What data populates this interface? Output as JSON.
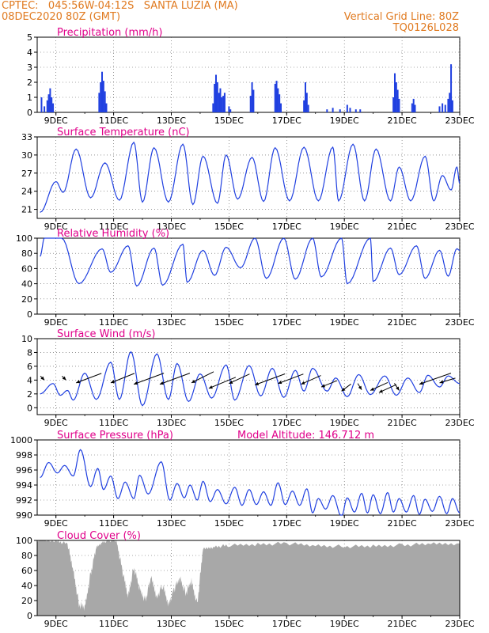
{
  "header": {
    "line1_left": "CPTEC:   045:56W-04:12S   SANTA LUZIA (MA)",
    "line2_left": "08DEC2020 80Z (GMT)",
    "line1_right": "Vertical Grid Line: 80Z",
    "line2_right": "TQ0126L028",
    "colors": {
      "header": "#e07a20",
      "title": "#e0008a",
      "line": "#2040e0",
      "bar": "#2040e0",
      "cloud": "#a8a8a8"
    }
  },
  "x_ticks": [
    {
      "label": "9DEC",
      "day": 9
    },
    {
      "label": "11DEC",
      "day": 11
    },
    {
      "label": "13DEC",
      "day": 13
    },
    {
      "label": "15DEC",
      "day": 15
    },
    {
      "label": "17DEC",
      "day": 17
    },
    {
      "label": "19DEC",
      "day": 19
    },
    {
      "label": "21DEC",
      "day": 21
    },
    {
      "label": "23DEC",
      "day": 23
    }
  ],
  "chart_data": [
    {
      "id": "precip",
      "type": "bar",
      "title": "Precipitation (mm/h)",
      "xlim": [
        8.35,
        23.0
      ],
      "ylim": [
        0,
        5
      ],
      "yticks": [
        "0",
        "1",
        "2",
        "3",
        "4",
        "5"
      ],
      "grid": true,
      "x": [
        8.5,
        8.6,
        8.7,
        8.75,
        8.8,
        8.85,
        8.9,
        10.5,
        10.55,
        10.6,
        10.65,
        10.7,
        10.75,
        14.45,
        14.5,
        14.55,
        14.6,
        14.65,
        14.7,
        14.75,
        14.8,
        14.85,
        15.0,
        15.05,
        15.75,
        15.8,
        15.85,
        16.6,
        16.65,
        16.7,
        16.75,
        16.8,
        17.6,
        17.65,
        17.7,
        17.75,
        18.4,
        18.6,
        18.85,
        19.1,
        19.2,
        19.4,
        19.55,
        20.7,
        20.75,
        20.8,
        20.85,
        20.9,
        21.35,
        21.4,
        21.45,
        22.3,
        22.4,
        22.5,
        22.6,
        22.65,
        22.7,
        22.75
      ],
      "values": [
        1.0,
        0.4,
        0.8,
        1.2,
        1.6,
        1.0,
        0.6,
        1.3,
        2.0,
        2.7,
        2.1,
        1.4,
        0.6,
        0.6,
        1.9,
        2.5,
        2.0,
        1.3,
        1.6,
        1.0,
        1.1,
        1.3,
        0.4,
        0.2,
        1.1,
        2.0,
        1.5,
        1.9,
        2.1,
        1.6,
        1.2,
        0.6,
        0.8,
        2.0,
        1.3,
        0.5,
        0.2,
        0.3,
        0.2,
        0.5,
        0.3,
        0.2,
        0.2,
        1.0,
        2.6,
        2.0,
        1.5,
        0.9,
        0.6,
        0.9,
        0.5,
        0.4,
        0.6,
        0.5,
        0.9,
        1.3,
        3.2,
        0.8
      ]
    },
    {
      "id": "temp",
      "type": "line",
      "title": "Surface Temperature (nC)",
      "xlim": [
        8.35,
        23.0
      ],
      "ylim": [
        19.5,
        33
      ],
      "yticks": [
        "21",
        "24",
        "27",
        "30",
        "33"
      ],
      "ytick_values": [
        21,
        24,
        27,
        30,
        33
      ],
      "grid": true,
      "peaks": [
        [
          9.0,
          25.6
        ],
        [
          9.7,
          31.0
        ],
        [
          10.7,
          28.7
        ],
        [
          11.7,
          32.1
        ],
        [
          12.4,
          31.2
        ],
        [
          13.4,
          31.8
        ],
        [
          14.1,
          29.8
        ],
        [
          14.9,
          30.0
        ],
        [
          15.8,
          29.6
        ],
        [
          16.6,
          31.2
        ],
        [
          17.6,
          31.3
        ],
        [
          18.6,
          31.3
        ],
        [
          19.3,
          31.8
        ],
        [
          20.1,
          31.0
        ],
        [
          20.9,
          28.0
        ],
        [
          21.8,
          29.8
        ],
        [
          22.4,
          26.6
        ],
        [
          22.9,
          28.0
        ]
      ],
      "troughs": [
        [
          8.45,
          20.5
        ],
        [
          9.25,
          23.8
        ],
        [
          10.2,
          22.9
        ],
        [
          11.2,
          22.5
        ],
        [
          12.0,
          22.2
        ],
        [
          12.9,
          22.2
        ],
        [
          13.75,
          21.8
        ],
        [
          14.6,
          22.0
        ],
        [
          15.3,
          22.7
        ],
        [
          16.2,
          22.3
        ],
        [
          17.1,
          22.4
        ],
        [
          18.1,
          22.4
        ],
        [
          18.8,
          22.4
        ],
        [
          19.7,
          22.4
        ],
        [
          20.6,
          22.4
        ],
        [
          21.3,
          22.4
        ],
        [
          22.1,
          22.4
        ],
        [
          22.7,
          24.2
        ]
      ],
      "end": [
        23.0,
        25.3
      ]
    },
    {
      "id": "rh",
      "type": "line",
      "title": "Relative Humidity (%)",
      "xlim": [
        8.35,
        23.0
      ],
      "ylim": [
        0,
        100
      ],
      "yticks": [
        "0",
        "20",
        "40",
        "60",
        "80",
        "100"
      ],
      "ytick_values": [
        0,
        20,
        40,
        60,
        80,
        100
      ],
      "grid": true,
      "peaks": [
        [
          8.6,
          100
        ],
        [
          9.2,
          100
        ],
        [
          10.6,
          86
        ],
        [
          11.5,
          90
        ],
        [
          12.4,
          87
        ],
        [
          13.4,
          92
        ],
        [
          14.1,
          84
        ],
        [
          14.9,
          88
        ],
        [
          15.9,
          100
        ],
        [
          16.9,
          100
        ],
        [
          17.9,
          100
        ],
        [
          18.9,
          100
        ],
        [
          19.9,
          100
        ],
        [
          20.6,
          87
        ],
        [
          21.5,
          90
        ],
        [
          22.3,
          84
        ],
        [
          22.9,
          86
        ]
      ],
      "troughs": [
        [
          8.45,
          76
        ],
        [
          8.9,
          100
        ],
        [
          9.8,
          40
        ],
        [
          10.9,
          55
        ],
        [
          11.8,
          37
        ],
        [
          12.7,
          38
        ],
        [
          13.55,
          42
        ],
        [
          14.5,
          51
        ],
        [
          15.4,
          61
        ],
        [
          16.3,
          47
        ],
        [
          17.3,
          46
        ],
        [
          18.2,
          49
        ],
        [
          19.1,
          40
        ],
        [
          20.0,
          43
        ],
        [
          20.9,
          52
        ],
        [
          21.8,
          47
        ],
        [
          22.6,
          50
        ]
      ],
      "end": [
        23.0,
        84
      ]
    },
    {
      "id": "wind",
      "type": "line",
      "title": "Surface Wind (m/s)",
      "xlim": [
        8.35,
        23.0
      ],
      "ylim": [
        -1,
        10
      ],
      "yticks": [
        "0",
        "2",
        "4",
        "6",
        "8",
        "10"
      ],
      "ytick_values": [
        0,
        2,
        4,
        6,
        8,
        10
      ],
      "grid": true,
      "peaks": [
        [
          8.9,
          3.5
        ],
        [
          9.4,
          2.5
        ],
        [
          10.0,
          5.0
        ],
        [
          10.9,
          6.6
        ],
        [
          11.6,
          8.1
        ],
        [
          12.5,
          7.8
        ],
        [
          13.2,
          6.4
        ],
        [
          14.0,
          4.9
        ],
        [
          14.9,
          6.2
        ],
        [
          15.7,
          6.1
        ],
        [
          16.5,
          5.7
        ],
        [
          17.3,
          5.4
        ],
        [
          17.9,
          5.7
        ],
        [
          18.7,
          4.3
        ],
        [
          19.5,
          4.8
        ],
        [
          20.4,
          4.6
        ],
        [
          21.2,
          4.3
        ],
        [
          21.9,
          4.7
        ],
        [
          22.6,
          4.6
        ]
      ],
      "troughs": [
        [
          8.45,
          2.0
        ],
        [
          9.15,
          1.8
        ],
        [
          9.6,
          1.1
        ],
        [
          10.4,
          1.2
        ],
        [
          11.2,
          1.2
        ],
        [
          12.0,
          0.3
        ],
        [
          12.9,
          1.2
        ],
        [
          13.6,
          0.9
        ],
        [
          14.4,
          1.4
        ],
        [
          15.2,
          1.1
        ],
        [
          16.1,
          1.7
        ],
        [
          16.9,
          1.5
        ],
        [
          17.6,
          2.4
        ],
        [
          18.4,
          2.4
        ],
        [
          19.1,
          1.6
        ],
        [
          19.9,
          1.9
        ],
        [
          20.8,
          1.8
        ],
        [
          21.6,
          2.2
        ],
        [
          22.3,
          3.0
        ]
      ],
      "end": [
        23.0,
        3.5
      ],
      "arrows": [
        [
          8.6,
          4,
          -5,
          -5
        ],
        [
          9.35,
          4,
          -5,
          -5
        ],
        [
          9.7,
          3.6,
          32,
          -12
        ],
        [
          10.9,
          3.6,
          30,
          -12
        ],
        [
          11.7,
          3.4,
          38,
          -14
        ],
        [
          12.6,
          3.4,
          38,
          -14
        ],
        [
          13.7,
          3.6,
          28,
          -14
        ],
        [
          14.3,
          2.8,
          34,
          -14
        ],
        [
          15.0,
          3.5,
          26,
          -12
        ],
        [
          15.9,
          3.3,
          38,
          -14
        ],
        [
          16.7,
          3.5,
          32,
          -12
        ],
        [
          17.5,
          3.4,
          25,
          -11
        ],
        [
          18.2,
          3.0,
          20,
          -8
        ],
        [
          18.9,
          2.4,
          12,
          -9
        ],
        [
          19.6,
          2.6,
          -5,
          -8
        ],
        [
          19.9,
          2.5,
          22,
          -10
        ],
        [
          20.2,
          2.2,
          22,
          -10
        ],
        [
          20.9,
          2.5,
          -6,
          -9
        ],
        [
          21.6,
          3.4,
          40,
          -14
        ],
        [
          22.3,
          3.6,
          20,
          -6
        ]
      ]
    },
    {
      "id": "pres",
      "type": "line",
      "title": "Surface Pressure (hPa)",
      "annotation": "Model Altitude: 146.712  m",
      "xlim": [
        8.35,
        23.0
      ],
      "ylim": [
        990,
        1000
      ],
      "yticks": [
        "990",
        "992",
        "994",
        "996",
        "998",
        "1000"
      ],
      "ytick_values": [
        990,
        992,
        994,
        996,
        998,
        1000
      ],
      "grid": true,
      "peaks": [
        [
          8.75,
          997.0
        ],
        [
          9.3,
          996.6
        ],
        [
          9.85,
          998.7
        ],
        [
          10.45,
          996.2
        ],
        [
          10.9,
          995.2
        ],
        [
          11.4,
          994.4
        ],
        [
          11.9,
          995.3
        ],
        [
          12.65,
          997.1
        ],
        [
          13.2,
          994.2
        ],
        [
          13.65,
          994.0
        ],
        [
          14.1,
          994.5
        ],
        [
          14.6,
          993.4
        ],
        [
          15.2,
          993.7
        ],
        [
          15.7,
          993.4
        ],
        [
          16.2,
          993.1
        ],
        [
          16.7,
          994.3
        ],
        [
          17.2,
          993.2
        ],
        [
          17.7,
          993.5
        ],
        [
          18.1,
          992.2
        ],
        [
          18.6,
          992.6
        ],
        [
          19.1,
          992.3
        ],
        [
          19.6,
          992.9
        ],
        [
          20.0,
          992.7
        ],
        [
          20.5,
          993.0
        ],
        [
          20.9,
          992.2
        ],
        [
          21.4,
          992.6
        ],
        [
          21.8,
          992.1
        ],
        [
          22.3,
          992.5
        ],
        [
          22.75,
          992.2
        ]
      ],
      "troughs": [
        [
          8.45,
          995.0
        ],
        [
          9.05,
          995.6
        ],
        [
          9.6,
          995.2
        ],
        [
          10.2,
          993.8
        ],
        [
          10.65,
          993.4
        ],
        [
          11.15,
          992.2
        ],
        [
          11.7,
          992.2
        ],
        [
          12.2,
          992.8
        ],
        [
          12.95,
          992.0
        ],
        [
          13.45,
          992.3
        ],
        [
          13.9,
          992.0
        ],
        [
          14.35,
          991.8
        ],
        [
          14.9,
          991.5
        ],
        [
          15.45,
          991.3
        ],
        [
          15.95,
          991.4
        ],
        [
          16.45,
          991.3
        ],
        [
          16.95,
          991.4
        ],
        [
          17.45,
          991.3
        ],
        [
          17.9,
          990.3
        ],
        [
          18.35,
          990.8
        ],
        [
          18.9,
          989.8
        ],
        [
          19.35,
          990.4
        ],
        [
          19.8,
          990.3
        ],
        [
          20.25,
          990.2
        ],
        [
          20.7,
          990.4
        ],
        [
          21.15,
          990.4
        ],
        [
          21.6,
          990.1
        ],
        [
          22.05,
          990.5
        ],
        [
          22.55,
          990.2
        ]
      ],
      "end": [
        23.0,
        990.3
      ]
    },
    {
      "id": "cloud",
      "type": "area",
      "title": "Cloud Cover (%)",
      "xlim": [
        8.35,
        23.0
      ],
      "ylim": [
        0,
        100
      ],
      "yticks": [
        "0",
        "20",
        "40",
        "60",
        "80",
        "100"
      ],
      "ytick_values": [
        0,
        20,
        40,
        60,
        80,
        100
      ],
      "grid": true,
      "x": [
        8.35,
        9.0,
        9.4,
        9.6,
        9.8,
        10.0,
        10.2,
        10.4,
        10.6,
        10.9,
        11.1,
        11.3,
        11.5,
        11.7,
        11.9,
        12.1,
        12.3,
        12.5,
        12.7,
        12.9,
        13.1,
        13.3,
        13.5,
        13.7,
        13.9,
        14.1,
        14.5,
        15.0,
        16.0,
        17.0,
        18.0,
        19.0,
        20.0,
        21.0,
        22.0,
        23.0
      ],
      "values": [
        100,
        100,
        95,
        60,
        15,
        10,
        55,
        90,
        98,
        100,
        100,
        60,
        25,
        65,
        35,
        20,
        50,
        25,
        40,
        15,
        35,
        50,
        30,
        45,
        15,
        88,
        92,
        93,
        95,
        96,
        93,
        92,
        92,
        94,
        95,
        96
      ]
    }
  ]
}
